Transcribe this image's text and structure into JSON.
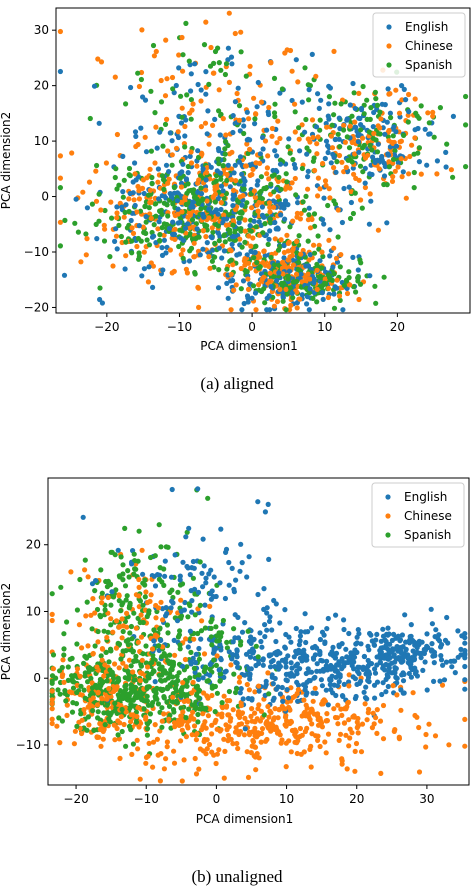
{
  "chart_data": [
    {
      "type": "scatter",
      "caption": "(a)  aligned",
      "xlabel": "PCA dimension1",
      "ylabel": "PCA dimension2",
      "xlim": [
        -27,
        30
      ],
      "ylim": [
        -21,
        34
      ],
      "xticks": [
        -20,
        -10,
        0,
        10,
        20
      ],
      "yticks": [
        -20,
        -10,
        0,
        10,
        20,
        30
      ],
      "grid": false,
      "legend_position": "top-right",
      "series": [
        {
          "name": "English",
          "color": "#1f77b4",
          "points": 700,
          "clusters": [
            [
              -5,
              -2,
              8,
              6,
              0.5
            ],
            [
              6,
              -15,
              4,
              2.5,
              0.2
            ],
            [
              16,
              10,
              5,
              5,
              0.2
            ],
            [
              -5,
              17,
              8,
              6,
              0.1
            ]
          ]
        },
        {
          "name": "Chinese",
          "color": "#ff7f0e",
          "points": 700,
          "clusters": [
            [
              -5,
              -2,
              8,
              6,
              0.48
            ],
            [
              5,
              -14,
              4,
              3,
              0.22
            ],
            [
              16,
              10,
              5,
              5,
              0.18
            ],
            [
              -4,
              18,
              9,
              7,
              0.12
            ]
          ]
        },
        {
          "name": "Spanish",
          "color": "#2ca02c",
          "points": 700,
          "clusters": [
            [
              -6,
              -3,
              8,
              5,
              0.52
            ],
            [
              7,
              -15,
              4,
              2,
              0.22
            ],
            [
              16,
              11,
              5,
              5,
              0.16
            ],
            [
              -5,
              17,
              8,
              6,
              0.1
            ]
          ]
        }
      ]
    },
    {
      "type": "scatter",
      "caption": "(b)  unaligned",
      "xlabel": "PCA dimension1",
      "ylabel": "PCA dimension2",
      "xlim": [
        -24,
        36
      ],
      "ylim": [
        -16,
        30
      ],
      "xticks": [
        -20,
        -10,
        0,
        10,
        20,
        30
      ],
      "yticks": [
        -10,
        0,
        10,
        20
      ],
      "grid": false,
      "legend_position": "top-right",
      "series": [
        {
          "name": "English",
          "color": "#1f77b4",
          "points": 700,
          "clusters": [
            [
              14,
              2,
              9,
              3,
              0.55
            ],
            [
              26,
              4,
              5,
              2,
              0.25
            ],
            [
              -2,
              12,
              6,
              7,
              0.2
            ]
          ]
        },
        {
          "name": "Chinese",
          "color": "#ff7f0e",
          "points": 700,
          "clusters": [
            [
              5,
              -7,
              12,
              3,
              0.65
            ],
            [
              -12,
              6,
              5,
              6,
              0.2
            ],
            [
              -17,
              -4,
              3,
              3,
              0.15
            ]
          ]
        },
        {
          "name": "Spanish",
          "color": "#2ca02c",
          "points": 700,
          "clusters": [
            [
              -12,
              -2,
              6,
              3,
              0.6
            ],
            [
              -12,
              10,
              5,
              6,
              0.3
            ],
            [
              -2,
              4,
              4,
              4,
              0.1
            ]
          ]
        }
      ]
    }
  ]
}
